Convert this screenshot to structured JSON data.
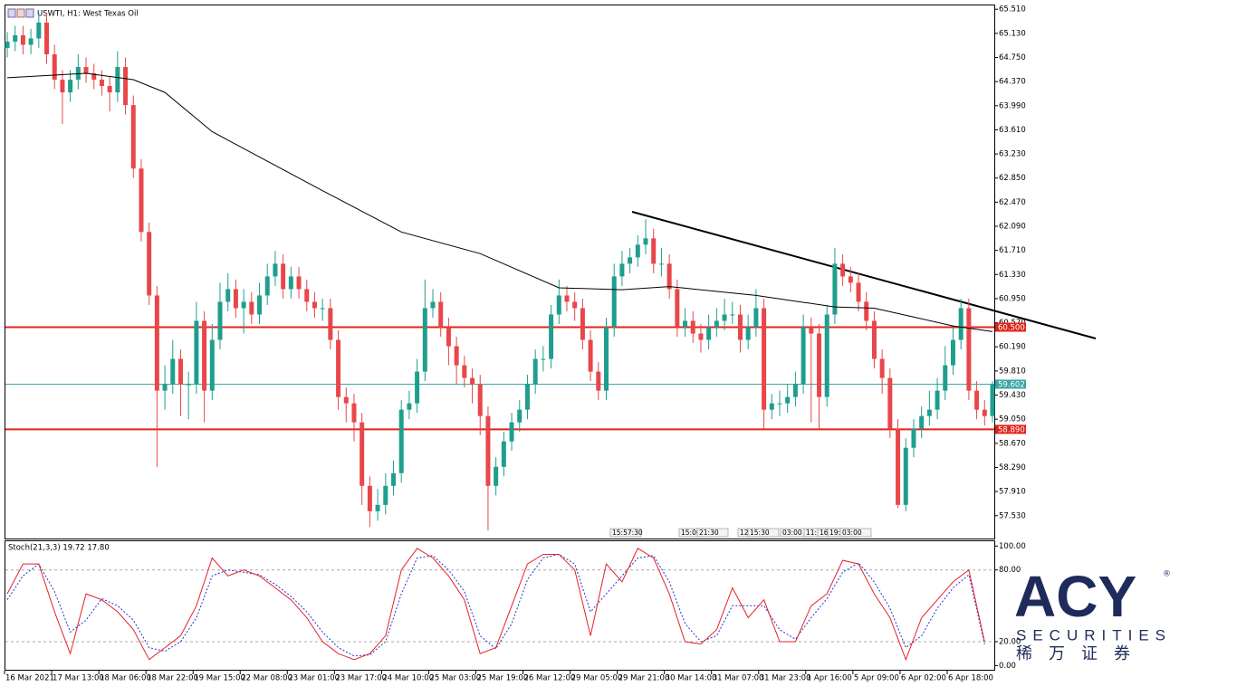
{
  "chart_data": [
    {
      "type": "candlestick",
      "title": "USWTI, H1:  West Texas Oil",
      "up_color": "#1f9e8e",
      "down_color": "#e8474a",
      "ylim": [
        57.17,
        65.57
      ],
      "yticks": [
        {
          "value": 65.51,
          "label": "65.510"
        },
        {
          "value": 65.13,
          "label": "65.130"
        },
        {
          "value": 64.75,
          "label": "64.750"
        },
        {
          "value": 64.37,
          "label": "64.370"
        },
        {
          "value": 63.99,
          "label": "63.990"
        },
        {
          "value": 63.61,
          "label": "63.610"
        },
        {
          "value": 63.23,
          "label": "63.230"
        },
        {
          "value": 62.85,
          "label": "62.850"
        },
        {
          "value": 62.47,
          "label": "62.470"
        },
        {
          "value": 62.09,
          "label": "62.090"
        },
        {
          "value": 61.71,
          "label": "61.710"
        },
        {
          "value": 61.33,
          "label": "61.330"
        },
        {
          "value": 60.95,
          "label": "60.950"
        },
        {
          "value": 60.57,
          "label": "60.570"
        },
        {
          "value": 60.19,
          "label": "60.190"
        },
        {
          "value": 59.81,
          "label": "59.810"
        },
        {
          "value": 59.43,
          "label": "59.430"
        },
        {
          "value": 59.05,
          "label": "59.050"
        },
        {
          "value": 58.67,
          "label": "58.670"
        },
        {
          "value": 58.29,
          "label": "58.290"
        },
        {
          "value": 57.91,
          "label": "57.910"
        },
        {
          "value": 57.53,
          "label": "57.530"
        }
      ],
      "open": [
        64.9,
        65.0,
        65.1,
        64.95,
        65.05,
        65.3,
        64.8,
        64.4,
        64.2,
        64.4,
        64.6,
        64.5,
        64.4,
        64.3,
        64.2,
        64.6,
        64.0,
        63.0,
        62.0,
        61.0,
        59.5,
        59.6,
        60.0,
        59.6,
        59.6,
        60.6,
        59.5,
        60.3,
        60.9,
        61.1,
        60.8,
        60.9,
        60.7,
        61.0,
        61.3,
        61.5,
        61.1,
        61.3,
        61.1,
        60.9,
        60.8,
        60.8,
        60.3,
        59.4,
        59.3,
        59.0,
        58.0,
        57.6,
        57.7,
        58.0,
        58.2,
        59.2,
        59.3,
        59.8,
        60.8,
        60.9,
        60.5,
        60.2,
        59.9,
        59.7,
        59.6,
        59.1,
        58.0,
        58.3,
        58.7,
        59.0,
        59.2,
        59.6,
        60.0,
        60.0,
        60.7,
        61.0,
        60.9,
        60.8,
        60.3,
        59.8,
        59.5,
        60.5,
        61.3,
        61.5,
        61.6,
        61.8,
        61.9,
        61.5,
        61.5,
        61.1,
        60.5,
        60.6,
        60.4,
        60.3,
        60.5,
        60.6,
        60.7,
        60.7,
        60.3,
        60.5,
        60.8,
        59.2,
        59.3,
        59.3,
        59.4,
        59.6,
        60.5,
        60.4,
        59.4,
        60.7,
        61.5,
        61.3,
        61.2,
        60.9,
        60.6,
        60.0,
        59.7,
        58.9,
        57.7,
        58.6,
        58.9,
        59.1,
        59.2,
        59.5,
        59.9,
        60.3,
        60.8,
        59.5,
        59.2,
        59.1
      ],
      "high": [
        65.15,
        65.25,
        65.25,
        65.2,
        65.45,
        65.45,
        64.95,
        64.55,
        64.55,
        64.8,
        64.75,
        64.65,
        64.55,
        64.45,
        64.85,
        64.75,
        64.15,
        63.15,
        62.15,
        61.15,
        59.9,
        60.3,
        60.15,
        59.8,
        60.9,
        60.75,
        60.55,
        61.2,
        61.35,
        61.25,
        61.1,
        61.05,
        61.2,
        61.5,
        61.7,
        61.65,
        61.45,
        61.45,
        61.25,
        61.05,
        60.95,
        60.95,
        60.45,
        59.55,
        59.45,
        59.15,
        58.15,
        57.95,
        58.2,
        58.4,
        59.35,
        59.5,
        60.0,
        61.25,
        61.1,
        61.05,
        60.65,
        60.35,
        60.05,
        59.85,
        59.75,
        59.25,
        58.45,
        58.85,
        59.15,
        59.35,
        59.75,
        60.15,
        60.2,
        60.85,
        61.25,
        61.15,
        61.05,
        60.95,
        60.45,
        59.95,
        60.65,
        61.5,
        61.7,
        61.75,
        61.95,
        62.2,
        62.05,
        61.75,
        61.65,
        61.25,
        60.8,
        60.75,
        60.55,
        60.7,
        60.8,
        60.95,
        60.9,
        60.85,
        60.7,
        61.1,
        60.95,
        59.45,
        59.5,
        59.6,
        59.8,
        60.7,
        60.65,
        60.55,
        60.85,
        61.75,
        61.65,
        61.45,
        61.35,
        61.05,
        60.75,
        60.15,
        59.85,
        59.05,
        58.75,
        59.05,
        59.25,
        59.5,
        59.7,
        60.2,
        60.5,
        60.95,
        60.95,
        59.65,
        59.35,
        59.65
      ],
      "low": [
        64.75,
        64.85,
        64.8,
        64.8,
        64.9,
        64.65,
        64.25,
        63.7,
        64.05,
        64.25,
        64.35,
        64.25,
        64.15,
        63.9,
        64.05,
        63.85,
        62.85,
        61.85,
        60.85,
        58.3,
        59.2,
        59.45,
        59.1,
        59.05,
        59.45,
        59.0,
        59.35,
        60.15,
        60.75,
        60.65,
        60.4,
        60.55,
        60.55,
        60.85,
        61.15,
        60.95,
        60.95,
        60.95,
        60.75,
        60.65,
        60.6,
        60.15,
        59.2,
        59.0,
        58.7,
        57.7,
        57.35,
        57.45,
        57.55,
        57.85,
        58.05,
        59.05,
        59.15,
        59.65,
        60.65,
        60.35,
        59.9,
        59.6,
        59.55,
        59.3,
        58.8,
        57.3,
        57.85,
        58.15,
        58.55,
        58.85,
        59.05,
        59.45,
        59.8,
        59.85,
        60.55,
        60.75,
        60.6,
        60.15,
        59.65,
        59.35,
        59.35,
        60.35,
        61.15,
        61.35,
        61.45,
        61.65,
        61.35,
        61.3,
        60.95,
        60.35,
        60.35,
        60.25,
        60.1,
        60.15,
        60.35,
        60.45,
        60.55,
        60.1,
        60.15,
        60.35,
        58.9,
        59.05,
        59.1,
        59.15,
        59.25,
        59.45,
        59.0,
        58.9,
        59.25,
        60.55,
        61.15,
        61.05,
        60.75,
        60.45,
        59.85,
        59.45,
        58.75,
        57.65,
        57.6,
        58.45,
        58.75,
        58.95,
        59.05,
        59.35,
        59.75,
        60.15,
        59.35,
        59.05,
        58.95,
        59.0
      ],
      "close": [
        65.0,
        65.1,
        64.95,
        65.05,
        65.3,
        64.8,
        64.4,
        64.2,
        64.4,
        64.6,
        64.5,
        64.4,
        64.3,
        64.2,
        64.6,
        64.0,
        63.0,
        62.0,
        61.0,
        59.5,
        59.6,
        60.0,
        59.6,
        59.6,
        60.6,
        59.5,
        60.3,
        60.9,
        61.1,
        60.8,
        60.9,
        60.7,
        61.0,
        61.3,
        61.5,
        61.1,
        61.3,
        61.1,
        60.9,
        60.8,
        60.8,
        60.3,
        59.4,
        59.3,
        59.0,
        58.0,
        57.6,
        57.7,
        58.0,
        58.2,
        59.2,
        59.3,
        59.8,
        60.8,
        60.9,
        60.5,
        60.2,
        59.9,
        59.7,
        59.6,
        59.1,
        58.0,
        58.3,
        58.7,
        59.0,
        59.2,
        59.6,
        60.0,
        60.0,
        60.7,
        61.0,
        60.9,
        60.8,
        60.3,
        59.8,
        59.5,
        60.5,
        61.3,
        61.5,
        61.6,
        61.8,
        61.9,
        61.5,
        61.5,
        61.1,
        60.5,
        60.6,
        60.4,
        60.3,
        60.5,
        60.6,
        60.7,
        60.7,
        60.3,
        60.5,
        60.8,
        59.2,
        59.3,
        59.3,
        59.4,
        59.6,
        60.5,
        60.4,
        59.4,
        60.7,
        61.5,
        61.3,
        61.2,
        60.9,
        60.6,
        60.0,
        59.7,
        58.9,
        57.7,
        58.6,
        58.9,
        59.1,
        59.2,
        59.5,
        59.9,
        60.3,
        60.8,
        59.5,
        59.2,
        59.1,
        59.6
      ],
      "ma": {
        "color": "#000000",
        "x": [
          0,
          10,
          16,
          20,
          26,
          40,
          50,
          60,
          70,
          78,
          84,
          95,
          105,
          110,
          115,
          120,
          125
        ],
        "values": [
          64.43,
          64.5,
          64.4,
          64.2,
          63.58,
          62.65,
          62.0,
          61.66,
          61.12,
          61.09,
          61.14,
          61.0,
          60.82,
          60.8,
          60.66,
          60.52,
          60.43
        ]
      },
      "levels": [
        {
          "value": 60.5,
          "label": "60.500",
          "color": "#e2231a"
        },
        {
          "value": 58.89,
          "label": "58.890",
          "color": "#e2231a"
        },
        {
          "value": 59.602,
          "label": "59.602",
          "color": "#3aa6a6"
        }
      ],
      "x_labels": [
        "16 Mar 2021",
        "17 Mar 13:00",
        "18 Mar 06:00",
        "18 Mar 22:00",
        "19 Mar 15:00",
        "22 Mar 08:00",
        "23 Mar 01:00",
        "23 Mar 17:00",
        "24 Mar 10:00",
        "25 Mar 03:00",
        "25 Mar 19:00",
        "26 Mar 12:00",
        "29 Mar 05:00",
        "29 Mar 21:00",
        "30 Mar 14:00",
        "31 Mar 07:00",
        "31 Mar 23:00",
        "1 Apr 16:00",
        "5 Apr 09:00",
        "6 Apr 02:00",
        "6 Apr 18:00"
      ],
      "time_markers": [
        "15:57:30",
        "15:00",
        "21:30",
        "12",
        "15:30",
        "03:00",
        "11:",
        "16",
        "19:",
        "03:00"
      ]
    },
    {
      "type": "line",
      "title": "Stoch(21,3,3) 19.72 17.80",
      "ylim": [
        -3.5,
        104
      ],
      "yticks": [
        {
          "value": 100,
          "label": "100.00"
        },
        {
          "value": 80,
          "label": "80.00"
        },
        {
          "value": 20,
          "label": "20.00"
        },
        {
          "value": 0,
          "label": "0.00"
        }
      ],
      "dashed_levels": [
        80,
        20
      ],
      "x": [
        0,
        2,
        4,
        6,
        8,
        10,
        12,
        14,
        16,
        18,
        20,
        22,
        24,
        26,
        28,
        30,
        32,
        34,
        36,
        38,
        40,
        42,
        44,
        46,
        48,
        50,
        52,
        54,
        56,
        58,
        60,
        62,
        64,
        66,
        68,
        70,
        72,
        74,
        76,
        78,
        80,
        82,
        84,
        86,
        88,
        90,
        92,
        94,
        96,
        98,
        100,
        102,
        104,
        106,
        108,
        110,
        112,
        114,
        116,
        118,
        120,
        122,
        124
      ],
      "series": [
        {
          "color": "#e8202a",
          "dash": false,
          "values": [
            60,
            85,
            85,
            45,
            10,
            60,
            55,
            45,
            30,
            5,
            15,
            25,
            50,
            90,
            75,
            80,
            75,
            65,
            55,
            40,
            20,
            10,
            5,
            10,
            25,
            80,
            98,
            90,
            75,
            55,
            10,
            15,
            50,
            85,
            93,
            93,
            80,
            25,
            85,
            70,
            98,
            90,
            60,
            20,
            18,
            30,
            65,
            40,
            55,
            20,
            20,
            50,
            60,
            88,
            85,
            60,
            40,
            5,
            40,
            55,
            70,
            80,
            19.72
          ]
        },
        {
          "color": "#2233cc",
          "dash": true,
          "values": [
            55,
            75,
            85,
            62,
            28,
            38,
            56,
            50,
            38,
            15,
            12,
            20,
            40,
            75,
            80,
            78,
            76,
            68,
            58,
            45,
            28,
            15,
            8,
            9,
            20,
            60,
            90,
            92,
            80,
            62,
            25,
            14,
            35,
            72,
            90,
            93,
            85,
            45,
            60,
            75,
            90,
            92,
            70,
            35,
            20,
            25,
            50,
            50,
            50,
            30,
            22,
            40,
            56,
            78,
            86,
            70,
            48,
            15,
            25,
            48,
            65,
            76,
            17.8
          ]
        }
      ]
    }
  ],
  "logo": {
    "brand": "ACY",
    "mark": "®",
    "line1": "SECURITIES",
    "line2": "稀万证券"
  }
}
